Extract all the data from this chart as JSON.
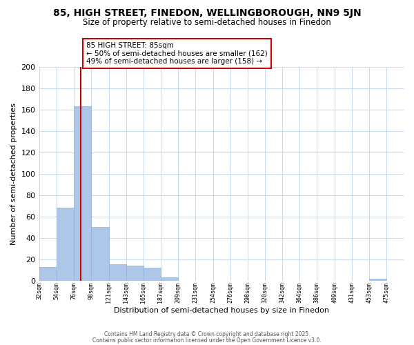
{
  "title": "85, HIGH STREET, FINEDON, WELLINGBOROUGH, NN9 5JN",
  "subtitle": "Size of property relative to semi-detached houses in Finedon",
  "xlabel": "Distribution of semi-detached houses by size in Finedon",
  "ylabel": "Number of semi-detached properties",
  "bar_edges": [
    32,
    54,
    76,
    98,
    121,
    143,
    165,
    187,
    209,
    231,
    254,
    276,
    298,
    320,
    342,
    364,
    386,
    409,
    431,
    453,
    475
  ],
  "bar_heights": [
    13,
    68,
    163,
    50,
    15,
    14,
    12,
    3,
    0,
    0,
    0,
    0,
    0,
    0,
    0,
    0,
    0,
    0,
    0,
    2,
    0
  ],
  "bar_color": "#aec6e8",
  "bar_edge_color": "#8ab0d8",
  "vline_x": 85,
  "vline_color": "#cc0000",
  "ylim": [
    0,
    200
  ],
  "yticks": [
    0,
    20,
    40,
    60,
    80,
    100,
    120,
    140,
    160,
    180,
    200
  ],
  "annotation_title": "85 HIGH STREET: 85sqm",
  "annotation_line1": "← 50% of semi-detached houses are smaller (162)",
  "annotation_line2": "49% of semi-detached houses are larger (158) →",
  "footnote1": "Contains HM Land Registry data © Crown copyright and database right 2025.",
  "footnote2": "Contains public sector information licensed under the Open Government Licence v3.0.",
  "background_color": "#ffffff",
  "grid_color": "#c8d8e8",
  "title_fontsize": 10,
  "subtitle_fontsize": 8.5,
  "tick_labels": [
    "32sqm",
    "54sqm",
    "76sqm",
    "98sqm",
    "121sqm",
    "143sqm",
    "165sqm",
    "187sqm",
    "209sqm",
    "231sqm",
    "254sqm",
    "276sqm",
    "298sqm",
    "320sqm",
    "342sqm",
    "364sqm",
    "386sqm",
    "409sqm",
    "431sqm",
    "453sqm",
    "475sqm"
  ]
}
